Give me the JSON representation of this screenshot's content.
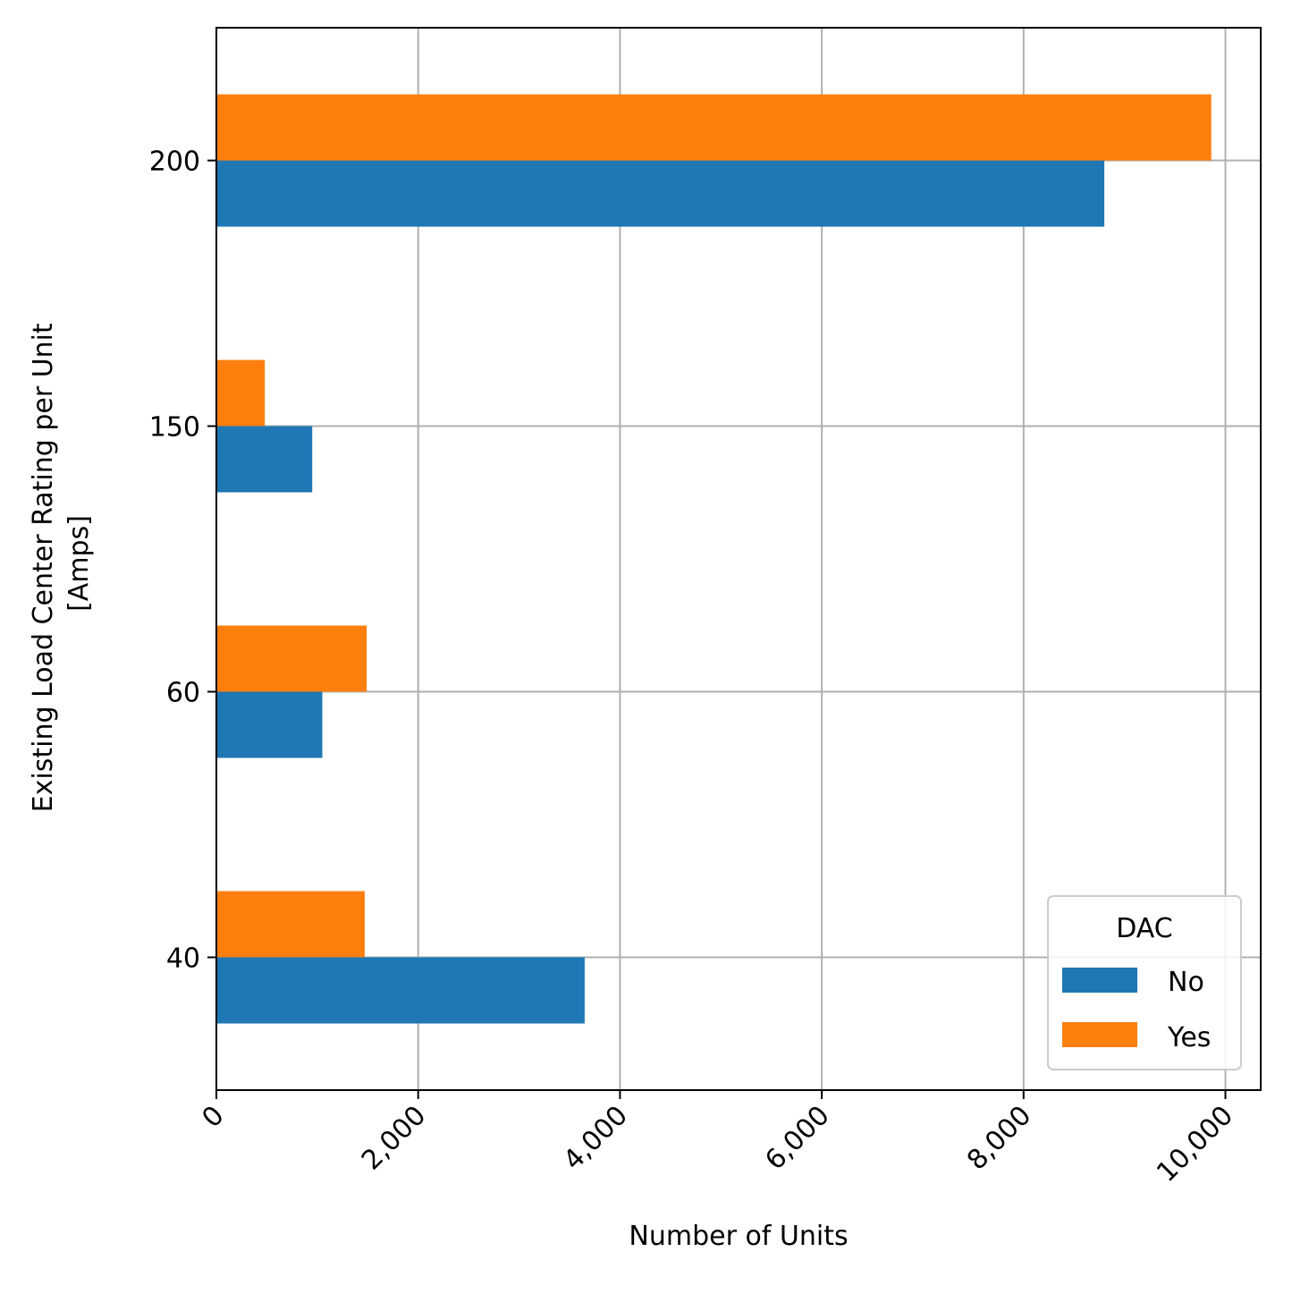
{
  "chart_data": {
    "type": "bar",
    "orientation": "horizontal",
    "categories": [
      "40",
      "60",
      "150",
      "200"
    ],
    "series": [
      {
        "name": "No",
        "color": "#1f77b4",
        "values": [
          3650,
          1050,
          950,
          8800
        ]
      },
      {
        "name": "Yes",
        "color": "#ff7f0e",
        "values": [
          1470,
          1490,
          480,
          9860
        ]
      }
    ],
    "xlabel": "Number of Units",
    "ylabel_lines": [
      "Existing Load Center Rating per Unit",
      "[Amps]"
    ],
    "xlim": [
      0,
      10350
    ],
    "x_ticks": [
      0,
      2000,
      4000,
      6000,
      8000,
      10000
    ],
    "x_tick_labels": [
      "0",
      "2,000",
      "4,000",
      "6,000",
      "8,000",
      "10,000"
    ],
    "x_tick_rotation": -45,
    "grid": true,
    "legend": {
      "title": "DAC",
      "position": "lower-right"
    }
  }
}
